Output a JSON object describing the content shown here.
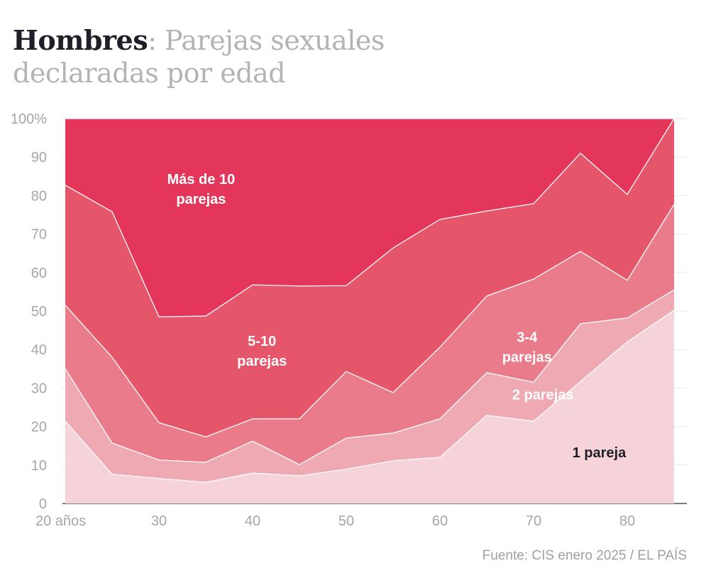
{
  "title": {
    "bold": "Hombres",
    "rest": ": Parejas sexuales declaradas por edad"
  },
  "source": "Fuente: CIS enero 2025 / EL PAÍS",
  "chart_data": {
    "type": "area",
    "stacked": true,
    "title": "Hombres: Parejas sexuales declaradas por edad",
    "xlabel": "años",
    "ylabel": "%",
    "x": [
      20,
      25,
      30,
      35,
      40,
      45,
      50,
      55,
      60,
      65,
      70,
      75,
      80,
      85
    ],
    "xlim": [
      20,
      85
    ],
    "ylim": [
      0,
      100
    ],
    "x_ticks": [
      {
        "v": 20,
        "label": "20 años"
      },
      {
        "v": 30,
        "label": "30"
      },
      {
        "v": 40,
        "label": "40"
      },
      {
        "v": 50,
        "label": "50"
      },
      {
        "v": 60,
        "label": "60"
      },
      {
        "v": 70,
        "label": "70"
      },
      {
        "v": 80,
        "label": "80"
      }
    ],
    "y_ticks": [
      {
        "v": 0,
        "label": "0"
      },
      {
        "v": 10,
        "label": "10"
      },
      {
        "v": 20,
        "label": "20"
      },
      {
        "v": 30,
        "label": "30"
      },
      {
        "v": 40,
        "label": "40"
      },
      {
        "v": 50,
        "label": "50"
      },
      {
        "v": 60,
        "label": "60"
      },
      {
        "v": 70,
        "label": "70"
      },
      {
        "v": 80,
        "label": "80"
      },
      {
        "v": 90,
        "label": "90"
      },
      {
        "v": 100,
        "label": "100%"
      }
    ],
    "grid": true,
    "series": [
      {
        "name": "1 pareja",
        "color": "#f6d3d9",
        "label_color": "#1f1f2a",
        "label_lines": [
          "1 pareja"
        ],
        "label_at": [
          77,
          12
        ],
        "values": [
          21.4,
          7.6,
          6.5,
          5.5,
          7.9,
          7.2,
          8.9,
          11.1,
          12,
          22.9,
          21.4,
          31.7,
          42,
          50.2
        ]
      },
      {
        "name": "2 parejas",
        "color": "#efa9b3",
        "label_color": "#ffffff",
        "label_lines": [
          "2 parejas"
        ],
        "label_at": [
          71,
          27
        ],
        "values": [
          13.6,
          8.1,
          4.8,
          5.2,
          8.3,
          2.9,
          8.1,
          7.2,
          10,
          11.1,
          10.1,
          15,
          6.2,
          5.3
        ]
      },
      {
        "name": "3-4 parejas",
        "color": "#ea7b8b",
        "label_color": "#ffffff",
        "label_lines": [
          "3-4",
          "parejas"
        ],
        "label_at": [
          69.3,
          42
        ],
        "values": [
          16.5,
          22.3,
          9.7,
          6.6,
          5.8,
          11.9,
          17.3,
          10.5,
          18.6,
          19.9,
          26.8,
          18.8,
          9.8,
          22.2
        ]
      },
      {
        "name": "5-10 parejas",
        "color": "#e5566a",
        "label_color": "#ffffff",
        "label_lines": [
          "5-10",
          "parejas"
        ],
        "label_at": [
          41,
          41
        ],
        "values": [
          31.2,
          37.8,
          27.5,
          31.4,
          34.8,
          34.5,
          22.3,
          37.6,
          33.2,
          22.1,
          19.6,
          25.5,
          22.3,
          22.3
        ]
      },
      {
        "name": "Más de 10 parejas",
        "color": "#e4365b",
        "label_color": "#ffffff",
        "label_lines": [
          "Más de 10",
          "parejas"
        ],
        "label_at": [
          34.5,
          83
        ],
        "values": [
          17.3,
          24.2,
          51.5,
          51.3,
          43.2,
          43.5,
          43.4,
          33.6,
          26.2,
          24,
          22.1,
          9,
          19.7,
          0
        ]
      }
    ]
  }
}
